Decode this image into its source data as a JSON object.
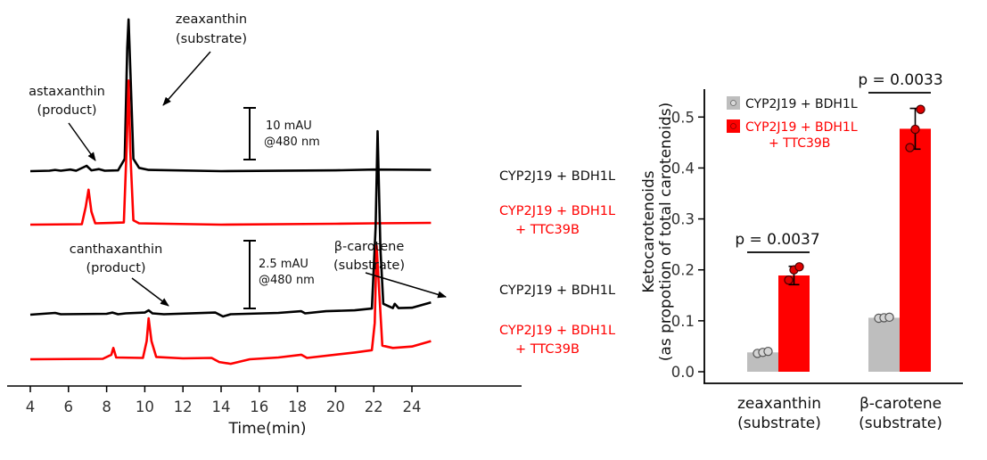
{
  "colors": {
    "black": "#000000",
    "red": "#ff0000",
    "grey": "#bebebe"
  },
  "chromatogram": {
    "type": "line",
    "xlabel": "Time(min)",
    "xlim": [
      4,
      25
    ],
    "xticks": [
      "4",
      "6",
      "8",
      "10",
      "12",
      "14",
      "16",
      "18",
      "20",
      "22",
      "24"
    ],
    "traces": [
      {
        "id": "zx-black",
        "label": "CYP2J19 + BDH1L",
        "color": "#000000",
        "points": [
          [
            4,
            0
          ],
          [
            5,
            0.1
          ],
          [
            5.3,
            0.3
          ],
          [
            5.6,
            0.1
          ],
          [
            6.1,
            0.4
          ],
          [
            6.4,
            0.1
          ],
          [
            6.95,
            1.3
          ],
          [
            7.2,
            0.2
          ],
          [
            7.6,
            0.5
          ],
          [
            7.9,
            0.1
          ],
          [
            8.6,
            0.2
          ],
          [
            8.95,
            3
          ],
          [
            9.08,
            30
          ],
          [
            9.15,
            37
          ],
          [
            9.25,
            24
          ],
          [
            9.4,
            3
          ],
          [
            9.7,
            0.8
          ],
          [
            10.2,
            0.3
          ],
          [
            14,
            0
          ],
          [
            20,
            0.2
          ],
          [
            22,
            0.4
          ],
          [
            25,
            0.3
          ]
        ]
      },
      {
        "id": "zx-red",
        "label1": "CYP2J19 + BDH1L",
        "label2": "+ TTC39B",
        "color": "#ff0000",
        "points": [
          [
            4,
            0
          ],
          [
            6.7,
            0.1
          ],
          [
            6.9,
            4
          ],
          [
            7.05,
            8
          ],
          [
            7.2,
            3
          ],
          [
            7.4,
            0.3
          ],
          [
            8.9,
            0.5
          ],
          [
            9.05,
            18
          ],
          [
            9.15,
            33
          ],
          [
            9.25,
            16
          ],
          [
            9.4,
            1
          ],
          [
            9.7,
            0.3
          ],
          [
            14,
            0
          ],
          [
            20,
            0.2
          ],
          [
            22,
            0.3
          ],
          [
            25,
            0.4
          ]
        ]
      },
      {
        "id": "bc-black",
        "label": "CYP2J19 + BDH1L",
        "color": "#000000",
        "points": [
          [
            4,
            0
          ],
          [
            5.3,
            0.4
          ],
          [
            5.6,
            0.1
          ],
          [
            8,
            0.2
          ],
          [
            8.3,
            0.5
          ],
          [
            8.6,
            0.1
          ],
          [
            9,
            0.3
          ],
          [
            10,
            0.5
          ],
          [
            10.2,
            1
          ],
          [
            10.4,
            0.3
          ],
          [
            11,
            0.1
          ],
          [
            13.7,
            0.5
          ],
          [
            14.1,
            -0.4
          ],
          [
            14.5,
            0.1
          ],
          [
            17,
            0.4
          ],
          [
            18.2,
            0.8
          ],
          [
            18.4,
            0.3
          ],
          [
            19.5,
            0.8
          ],
          [
            21,
            1
          ],
          [
            21.9,
            1.4
          ],
          [
            22.1,
            20
          ],
          [
            22.2,
            42
          ],
          [
            22.35,
            15
          ],
          [
            22.5,
            2.5
          ],
          [
            23,
            1.5
          ],
          [
            23.1,
            2.5
          ],
          [
            23.3,
            1.5
          ],
          [
            24,
            1.6
          ],
          [
            25,
            2.8
          ]
        ]
      },
      {
        "id": "bc-red",
        "label1": "CYP2J19 + BDH1L",
        "label2": "+ TTC39B",
        "color": "#ff0000",
        "points": [
          [
            4,
            0
          ],
          [
            7.8,
            0.1
          ],
          [
            8.25,
            1
          ],
          [
            8.35,
            2.5
          ],
          [
            8.5,
            0.4
          ],
          [
            9.9,
            0.3
          ],
          [
            10.1,
            4
          ],
          [
            10.2,
            9
          ],
          [
            10.35,
            4
          ],
          [
            10.6,
            0.5
          ],
          [
            12,
            0.2
          ],
          [
            13.5,
            0.3
          ],
          [
            13.9,
            -0.6
          ],
          [
            14.5,
            -1
          ],
          [
            15.5,
            0
          ],
          [
            17,
            0.4
          ],
          [
            18.2,
            1
          ],
          [
            18.5,
            0.3
          ],
          [
            21,
            1.5
          ],
          [
            21.9,
            2
          ],
          [
            22.05,
            8
          ],
          [
            22.15,
            25
          ],
          [
            22.3,
            14
          ],
          [
            22.45,
            3
          ],
          [
            23,
            2.5
          ],
          [
            24,
            2.8
          ],
          [
            25,
            4
          ]
        ]
      }
    ],
    "annotations": [
      {
        "id": "zeaxanthin",
        "line1": "zeaxanthin",
        "line2": "(substrate)"
      },
      {
        "id": "astaxanthin",
        "line1": "astaxanthin",
        "line2": "(product)"
      },
      {
        "id": "canthaxanthin",
        "line1": "canthaxanthin",
        "line2": "(product)"
      },
      {
        "id": "bcarotene",
        "line1": "β-carotene",
        "line2": "(substrate)"
      }
    ],
    "scalebars": [
      {
        "id": "top",
        "line1": "10 mAU",
        "line2": "@480 nm"
      },
      {
        "id": "bottom",
        "line1": "2.5 mAU",
        "line2": "@480 nm"
      }
    ]
  },
  "chart_data": {
    "type": "bar",
    "categories": [
      "zeaxanthin\n(substrate)",
      "β-carotene\n(substrate)"
    ],
    "category_lines": [
      [
        "zeaxanthin",
        "(substrate)"
      ],
      [
        "β-carotene",
        "(substrate)"
      ]
    ],
    "ylabel_line1": "Ketocarotenoids",
    "ylabel_line2": "(as propotion of total carotenoids)",
    "ylim": [
      0,
      0.55
    ],
    "yticks": [
      "0.0",
      "0.1",
      "0.2",
      "0.3",
      "0.4",
      "0.5"
    ],
    "legend_position": "top-left",
    "series": [
      {
        "name": "CYP2J19 + BDH1L",
        "color": "#bebebe",
        "values": [
          0.038,
          0.106
        ],
        "errors": [
          0.002,
          0.003
        ],
        "points": [
          [
            0.036,
            0.038,
            0.04
          ],
          [
            0.105,
            0.106,
            0.107
          ]
        ]
      },
      {
        "name_line1": "CYP2J19 + BDH1L",
        "name_line2": "+ TTC39B",
        "color": "#ff0000",
        "values": [
          0.189,
          0.477
        ],
        "errors": [
          0.018,
          0.04
        ],
        "points": [
          [
            0.18,
            0.2,
            0.206
          ],
          [
            0.44,
            0.476,
            0.515
          ]
        ]
      }
    ],
    "significance": [
      {
        "category": 0,
        "label": "p = 0.0037"
      },
      {
        "category": 1,
        "label": "p = 0.0033"
      }
    ]
  }
}
